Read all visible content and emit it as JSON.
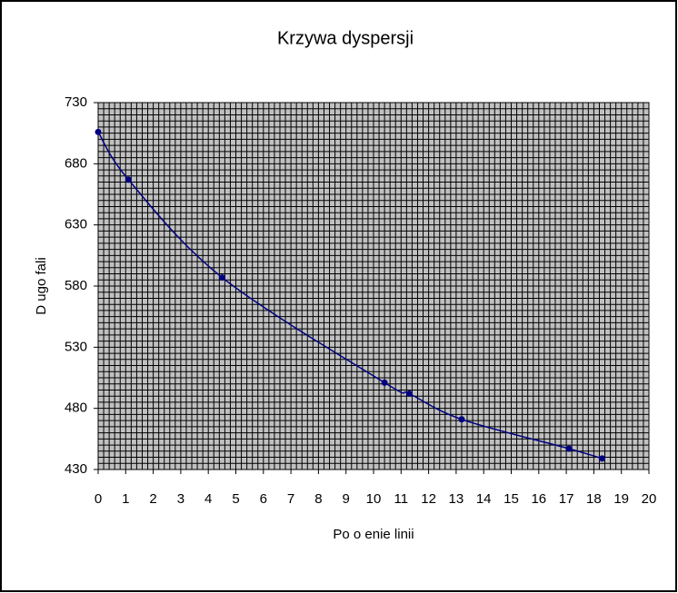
{
  "chart_data": {
    "type": "line",
    "title": "Krzywa dyspersji",
    "x_label": "Po o enie linii",
    "y_label": "D ugo  fali",
    "x": [
      0,
      1.1,
      4.5,
      10.4,
      11.3,
      13.2,
      17.1,
      18.3
    ],
    "series": [
      {
        "color": "#000080",
        "values": [
          706,
          667,
          587,
          501,
          492,
          471,
          447,
          439
        ]
      }
    ],
    "xlim": [
      0,
      20
    ],
    "xticks": [
      0,
      1,
      2,
      3,
      4,
      5,
      6,
      7,
      8,
      9,
      10,
      11,
      12,
      13,
      14,
      15,
      16,
      17,
      18,
      19,
      20
    ],
    "ylim": [
      430,
      730
    ],
    "yticks": [
      430,
      480,
      530,
      580,
      630,
      680,
      730
    ],
    "grid": true,
    "minor_step_x": 0.2,
    "minor_step_y": 5,
    "smooth": true
  }
}
